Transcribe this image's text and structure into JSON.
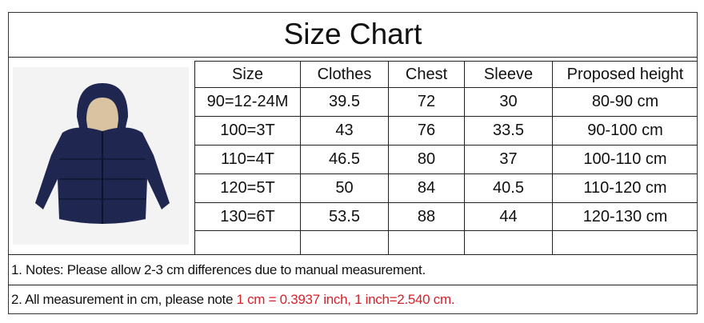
{
  "title": "Size Chart",
  "headers": [
    "Size",
    "Clothes",
    "Chest",
    "Sleeve",
    "Proposed height"
  ],
  "rows": [
    [
      "90=12-24M",
      "39.5",
      "72",
      "30",
      "80-90 cm"
    ],
    [
      "100=3T",
      "43",
      "76",
      "33.5",
      "90-100 cm"
    ],
    [
      "110=4T",
      "46.5",
      "80",
      "37",
      "100-110 cm"
    ],
    [
      "120=5T",
      "50",
      "84",
      "40.5",
      "110-120 cm"
    ],
    [
      "130=6T",
      "53.5",
      "88",
      "44",
      "120-130 cm"
    ],
    [
      "",
      "",
      "",
      "",
      ""
    ]
  ],
  "notes": {
    "note1": "1. Notes: Please allow 2-3 cm differences due to manual measurement.",
    "note2_prefix": "2. All measurement in cm, please note ",
    "note2_highlight": "1 cm = 0.3937 inch, 1 inch=2.540 cm."
  },
  "colors": {
    "highlight": "#d8202a",
    "jacket": "#1f2750",
    "lining": "#d9c3a0"
  },
  "image": "navy-hooded-puffer-jacket"
}
